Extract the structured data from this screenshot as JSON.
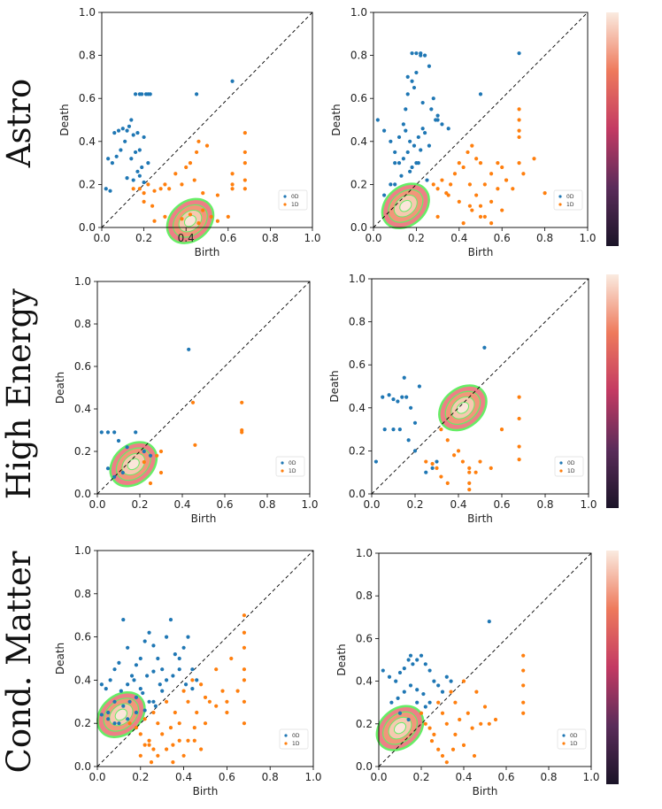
{
  "colors": {
    "dim0": "#1f77b4",
    "dim1": "#ff7f0e",
    "contour": "#66ee66",
    "diagonal": "#000000"
  },
  "row_labels": [
    "Astro",
    "High Energy",
    "Cond. Matter"
  ],
  "legend": [
    "0D",
    "1D"
  ],
  "xlabel": "Birth",
  "ylabel": "Death",
  "ticks": [
    "0.0",
    "0.2",
    "0.4",
    "0.6",
    "0.8",
    "1.0"
  ],
  "chart_data": [
    {
      "type": "scatter",
      "row": "Astro",
      "column": 1,
      "xlabel": "Birth",
      "ylabel": "Death",
      "xlim": [
        0,
        1
      ],
      "ylim": [
        0,
        1
      ],
      "series": [
        {
          "name": "0D",
          "x": [
            0.02,
            0.04,
            0.03,
            0.06,
            0.08,
            0.1,
            0.12,
            0.13,
            0.15,
            0.17,
            0.18,
            0.2,
            0.05,
            0.07,
            0.09,
            0.11,
            0.14,
            0.16,
            0.19,
            0.12,
            0.15,
            0.17,
            0.18,
            0.2,
            0.14,
            0.22,
            0.18,
            0.21,
            0.16,
            0.19,
            0.22,
            0.23,
            0.45,
            0.62
          ],
          "y": [
            0.18,
            0.17,
            0.32,
            0.44,
            0.45,
            0.46,
            0.45,
            0.47,
            0.43,
            0.44,
            0.36,
            0.42,
            0.3,
            0.33,
            0.36,
            0.4,
            0.32,
            0.35,
            0.28,
            0.23,
            0.22,
            0.26,
            0.24,
            0.21,
            0.5,
            0.3,
            0.62,
            0.62,
            0.62,
            0.62,
            0.62,
            0.62,
            0.62,
            0.68
          ]
        },
        {
          "name": "1D",
          "x": [
            0.15,
            0.18,
            0.2,
            0.22,
            0.25,
            0.28,
            0.3,
            0.32,
            0.35,
            0.38,
            0.4,
            0.42,
            0.44,
            0.45,
            0.46,
            0.48,
            0.5,
            0.52,
            0.55,
            0.6,
            0.62,
            0.68,
            0.68,
            0.68,
            0.68,
            0.68,
            0.62,
            0.62,
            0.55,
            0.25,
            0.3,
            0.38,
            0.42,
            0.46,
            0.48,
            0.2,
            0.24
          ],
          "y": [
            0.18,
            0.18,
            0.16,
            0.2,
            0.17,
            0.18,
            0.2,
            0.18,
            0.25,
            0.2,
            0.28,
            0.3,
            0.22,
            0.35,
            0.4,
            0.16,
            0.38,
            0.05,
            0.03,
            0.05,
            0.18,
            0.18,
            0.22,
            0.3,
            0.35,
            0.44,
            0.2,
            0.25,
            0.15,
            0.03,
            0.05,
            0.04,
            0.06,
            0.02,
            0.08,
            0.12,
            0.1
          ]
        }
      ],
      "density_center": [
        0.42,
        0.03
      ]
    },
    {
      "type": "scatter",
      "row": "Astro",
      "column": 2,
      "xlabel": "Birth",
      "ylabel": "Death",
      "xlim": [
        0,
        1
      ],
      "ylim": [
        0,
        1
      ],
      "series": [
        {
          "name": "0D",
          "x": [
            0.02,
            0.05,
            0.08,
            0.1,
            0.12,
            0.14,
            0.15,
            0.16,
            0.18,
            0.2,
            0.22,
            0.24,
            0.26,
            0.28,
            0.3,
            0.15,
            0.17,
            0.19,
            0.21,
            0.23,
            0.12,
            0.14,
            0.16,
            0.18,
            0.2,
            0.22,
            0.24,
            0.26,
            0.1,
            0.13,
            0.17,
            0.21,
            0.25,
            0.29,
            0.18,
            0.2,
            0.22,
            0.16,
            0.19,
            0.23,
            0.27,
            0.3,
            0.32,
            0.35,
            0.68,
            0.5,
            0.05,
            0.08,
            0.1
          ],
          "y": [
            0.5,
            0.45,
            0.4,
            0.3,
            0.42,
            0.48,
            0.55,
            0.62,
            0.68,
            0.72,
            0.8,
            0.8,
            0.75,
            0.6,
            0.5,
            0.45,
            0.4,
            0.38,
            0.42,
            0.46,
            0.3,
            0.32,
            0.35,
            0.28,
            0.3,
            0.36,
            0.44,
            0.38,
            0.2,
            0.24,
            0.26,
            0.3,
            0.22,
            0.5,
            0.81,
            0.81,
            0.81,
            0.7,
            0.65,
            0.58,
            0.55,
            0.52,
            0.48,
            0.46,
            0.81,
            0.62,
            0.15,
            0.2,
            0.35
          ]
        },
        {
          "name": "1D",
          "x": [
            0.28,
            0.3,
            0.32,
            0.34,
            0.36,
            0.38,
            0.4,
            0.42,
            0.44,
            0.46,
            0.48,
            0.5,
            0.52,
            0.55,
            0.58,
            0.6,
            0.62,
            0.65,
            0.68,
            0.7,
            0.75,
            0.8,
            0.68,
            0.68,
            0.68,
            0.68,
            0.45,
            0.5,
            0.55,
            0.6,
            0.4,
            0.35,
            0.3,
            0.45,
            0.48,
            0.5,
            0.52,
            0.55,
            0.58,
            0.62,
            0.42,
            0.46
          ],
          "y": [
            0.2,
            0.18,
            0.22,
            0.16,
            0.2,
            0.25,
            0.3,
            0.28,
            0.35,
            0.38,
            0.32,
            0.3,
            0.2,
            0.25,
            0.3,
            0.28,
            0.22,
            0.18,
            0.3,
            0.25,
            0.32,
            0.16,
            0.42,
            0.45,
            0.5,
            0.55,
            0.1,
            0.05,
            0.02,
            0.08,
            0.12,
            0.15,
            0.05,
            0.2,
            0.15,
            0.1,
            0.05,
            0.12,
            0.18,
            0.22,
            0.02,
            0.08
          ]
        }
      ],
      "density_center": [
        0.15,
        0.1
      ]
    },
    {
      "type": "scatter",
      "row": "High Energy",
      "column": 1,
      "xlabel": "Birth",
      "ylabel": "Death",
      "xlim": [
        0,
        1
      ],
      "ylim": [
        0,
        1
      ],
      "series": [
        {
          "name": "0D",
          "x": [
            0.02,
            0.05,
            0.08,
            0.1,
            0.14,
            0.18,
            0.22,
            0.25,
            0.43,
            0.05,
            0.08,
            0.12
          ],
          "y": [
            0.29,
            0.29,
            0.29,
            0.25,
            0.22,
            0.29,
            0.2,
            0.18,
            0.68,
            0.12,
            0.08,
            0.1
          ]
        },
        {
          "name": "1D",
          "x": [
            0.22,
            0.28,
            0.3,
            0.45,
            0.46,
            0.68,
            0.68,
            0.68,
            0.25,
            0.3
          ],
          "y": [
            0.15,
            0.18,
            0.2,
            0.43,
            0.23,
            0.43,
            0.3,
            0.29,
            0.05,
            0.1
          ]
        }
      ],
      "density_center": [
        0.17,
        0.14
      ]
    },
    {
      "type": "scatter",
      "row": "High Energy",
      "column": 2,
      "xlabel": "Birth",
      "ylabel": "Death",
      "xlim": [
        0,
        1
      ],
      "ylim": [
        0,
        1
      ],
      "series": [
        {
          "name": "0D",
          "x": [
            0.02,
            0.05,
            0.08,
            0.1,
            0.12,
            0.14,
            0.15,
            0.16,
            0.18,
            0.2,
            0.22,
            0.06,
            0.1,
            0.13,
            0.17,
            0.2,
            0.52,
            0.25,
            0.28,
            0.3
          ],
          "y": [
            0.15,
            0.45,
            0.46,
            0.44,
            0.43,
            0.45,
            0.54,
            0.45,
            0.4,
            0.33,
            0.5,
            0.3,
            0.3,
            0.3,
            0.25,
            0.2,
            0.68,
            0.1,
            0.12,
            0.15
          ]
        },
        {
          "name": "1D",
          "x": [
            0.25,
            0.28,
            0.3,
            0.32,
            0.35,
            0.38,
            0.4,
            0.42,
            0.45,
            0.48,
            0.5,
            0.55,
            0.6,
            0.68,
            0.68,
            0.68,
            0.68,
            0.45,
            0.45,
            0.45,
            0.35,
            0.32
          ],
          "y": [
            0.15,
            0.14,
            0.12,
            0.08,
            0.05,
            0.18,
            0.2,
            0.15,
            0.12,
            0.1,
            0.15,
            0.12,
            0.3,
            0.45,
            0.35,
            0.22,
            0.16,
            0.05,
            0.02,
            0.1,
            0.25,
            0.3
          ]
        }
      ],
      "density_center": [
        0.42,
        0.4
      ]
    },
    {
      "type": "scatter",
      "row": "Cond. Matter",
      "column": 1,
      "xlabel": "Birth",
      "ylabel": "Death",
      "xlim": [
        0,
        1
      ],
      "ylim": [
        0,
        1
      ],
      "series": [
        {
          "name": "0D",
          "x": [
            0.02,
            0.04,
            0.06,
            0.08,
            0.1,
            0.12,
            0.14,
            0.16,
            0.18,
            0.2,
            0.22,
            0.24,
            0.26,
            0.28,
            0.3,
            0.32,
            0.34,
            0.36,
            0.38,
            0.4,
            0.42,
            0.44,
            0.46,
            0.05,
            0.08,
            0.11,
            0.14,
            0.17,
            0.2,
            0.23,
            0.26,
            0.29,
            0.32,
            0.35,
            0.38,
            0.41,
            0.44,
            0.12,
            0.15,
            0.18,
            0.21,
            0.24,
            0.27,
            0.3,
            0.1,
            0.14,
            0.18,
            0.22,
            0.26,
            0.02,
            0.05,
            0.08
          ],
          "y": [
            0.38,
            0.36,
            0.4,
            0.45,
            0.48,
            0.68,
            0.55,
            0.42,
            0.47,
            0.5,
            0.58,
            0.62,
            0.56,
            0.5,
            0.45,
            0.6,
            0.68,
            0.52,
            0.5,
            0.55,
            0.6,
            0.45,
            0.4,
            0.25,
            0.3,
            0.35,
            0.38,
            0.4,
            0.36,
            0.42,
            0.44,
            0.38,
            0.4,
            0.42,
            0.45,
            0.38,
            0.36,
            0.28,
            0.3,
            0.32,
            0.34,
            0.3,
            0.28,
            0.35,
            0.2,
            0.22,
            0.25,
            0.26,
            0.3,
            0.24,
            0.22,
            0.2
          ]
        },
        {
          "name": "1D",
          "x": [
            0.15,
            0.18,
            0.2,
            0.22,
            0.24,
            0.26,
            0.28,
            0.3,
            0.32,
            0.34,
            0.36,
            0.38,
            0.4,
            0.42,
            0.44,
            0.46,
            0.48,
            0.5,
            0.52,
            0.55,
            0.58,
            0.6,
            0.62,
            0.65,
            0.68,
            0.68,
            0.68,
            0.68,
            0.68,
            0.68,
            0.68,
            0.25,
            0.28,
            0.32,
            0.35,
            0.38,
            0.42,
            0.45,
            0.48,
            0.2,
            0.22,
            0.24,
            0.26,
            0.35,
            0.4,
            0.45,
            0.5,
            0.55,
            0.6
          ],
          "y": [
            0.2,
            0.18,
            0.15,
            0.22,
            0.1,
            0.25,
            0.2,
            0.15,
            0.3,
            0.18,
            0.25,
            0.2,
            0.35,
            0.3,
            0.4,
            0.25,
            0.38,
            0.32,
            0.3,
            0.45,
            0.35,
            0.3,
            0.5,
            0.35,
            0.7,
            0.62,
            0.55,
            0.45,
            0.4,
            0.3,
            0.2,
            0.02,
            0.05,
            0.08,
            0.1,
            0.12,
            0.12,
            0.12,
            0.08,
            0.05,
            0.1,
            0.12,
            0.08,
            0.02,
            0.05,
            0.18,
            0.2,
            0.28,
            0.25
          ]
        }
      ],
      "density_center": [
        0.11,
        0.24
      ]
    },
    {
      "type": "scatter",
      "row": "Cond. Matter",
      "column": 2,
      "xlabel": "Birth",
      "ylabel": "Death",
      "xlim": [
        0,
        1
      ],
      "ylim": [
        0,
        1
      ],
      "series": [
        {
          "name": "0D",
          "x": [
            0.02,
            0.05,
            0.08,
            0.1,
            0.12,
            0.14,
            0.15,
            0.16,
            0.18,
            0.2,
            0.22,
            0.24,
            0.26,
            0.28,
            0.3,
            0.32,
            0.34,
            0.06,
            0.09,
            0.12,
            0.15,
            0.18,
            0.21,
            0.24,
            0.52,
            0.1,
            0.14,
            0.18,
            0.22
          ],
          "y": [
            0.45,
            0.42,
            0.4,
            0.44,
            0.46,
            0.5,
            0.52,
            0.48,
            0.5,
            0.52,
            0.48,
            0.45,
            0.4,
            0.38,
            0.35,
            0.42,
            0.4,
            0.3,
            0.32,
            0.35,
            0.38,
            0.36,
            0.34,
            0.3,
            0.68,
            0.25,
            0.22,
            0.3,
            0.28
          ]
        },
        {
          "name": "1D",
          "x": [
            0.2,
            0.22,
            0.24,
            0.26,
            0.28,
            0.3,
            0.32,
            0.34,
            0.36,
            0.38,
            0.4,
            0.42,
            0.44,
            0.46,
            0.48,
            0.5,
            0.52,
            0.55,
            0.68,
            0.68,
            0.68,
            0.68,
            0.68,
            0.3,
            0.35,
            0.4,
            0.45,
            0.25,
            0.28,
            0.32,
            0.36
          ],
          "y": [
            0.25,
            0.2,
            0.18,
            0.15,
            0.3,
            0.25,
            0.2,
            0.35,
            0.3,
            0.22,
            0.4,
            0.25,
            0.18,
            0.35,
            0.2,
            0.28,
            0.2,
            0.22,
            0.52,
            0.45,
            0.38,
            0.3,
            0.25,
            0.05,
            0.08,
            0.1,
            0.05,
            0.12,
            0.08,
            0.02,
            0.15
          ]
        }
      ],
      "density_center": [
        0.1,
        0.18
      ]
    }
  ]
}
